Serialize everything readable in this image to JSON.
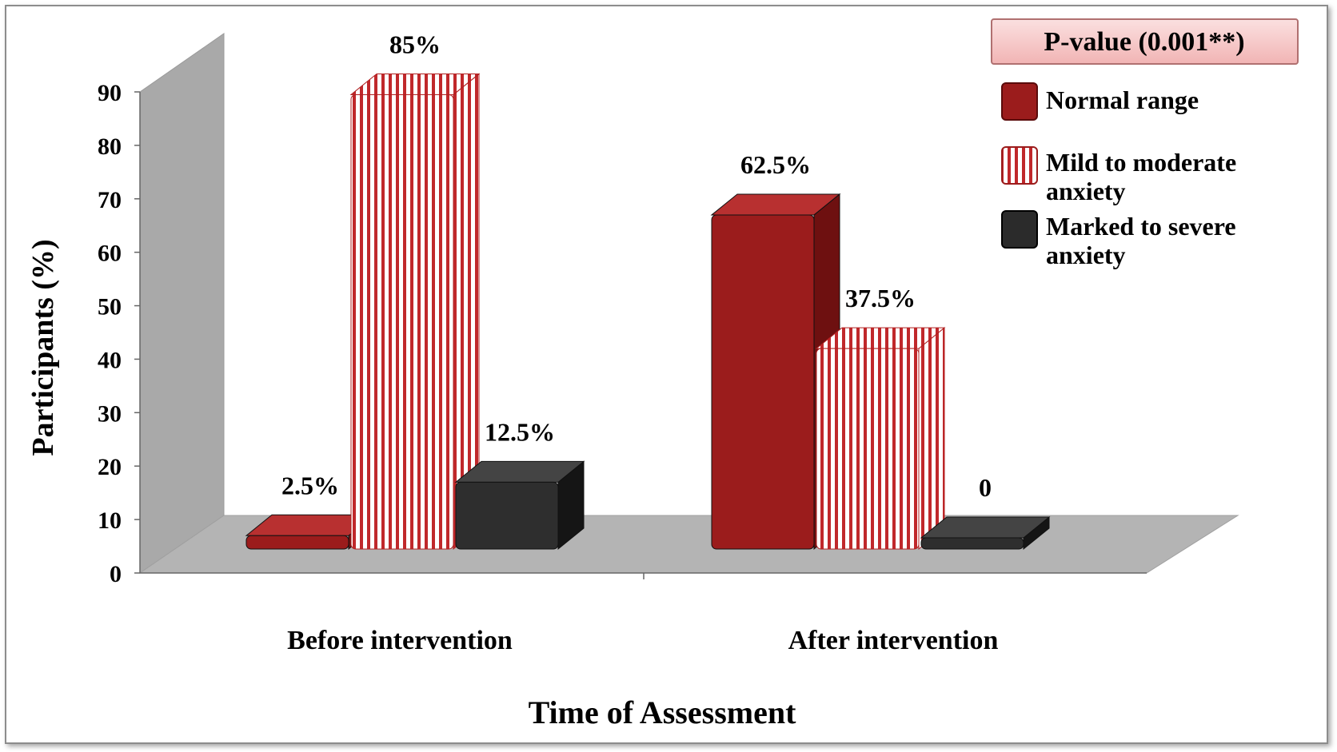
{
  "chart_data": {
    "type": "bar",
    "categories": [
      "Before intervention",
      "After intervention"
    ],
    "series": [
      {
        "name": "Normal range",
        "values": [
          2.5,
          62.5
        ],
        "color": "#9b1c1c",
        "pattern": "solid"
      },
      {
        "name": "Mild to moderate anxiety",
        "values": [
          85,
          37.5
        ],
        "color": "#c0392b",
        "pattern": "vertical-stripes"
      },
      {
        "name": "Marked to severe anxiety",
        "values": [
          12.5,
          0
        ],
        "color": "#2b2b2b",
        "pattern": "solid"
      }
    ],
    "data_labels": [
      [
        "2.5%",
        "62.5%"
      ],
      [
        "85%",
        "37.5%"
      ],
      [
        "12.5%",
        "0"
      ]
    ],
    "xlabel": "Time of Assessment",
    "ylabel": "Participants (%)",
    "ylim": [
      0,
      90
    ],
    "yticks": [
      "0",
      "10",
      "20",
      "30",
      "40",
      "50",
      "60",
      "70",
      "80",
      "90"
    ],
    "legend_title": "P-value (0.001**)",
    "legend_labels": [
      [
        "Normal range"
      ],
      [
        "Mild to moderate",
        "anxiety"
      ],
      [
        "Marked to severe",
        "anxiety"
      ]
    ],
    "legend_position": "top-right",
    "grid": false,
    "style": "3d"
  }
}
